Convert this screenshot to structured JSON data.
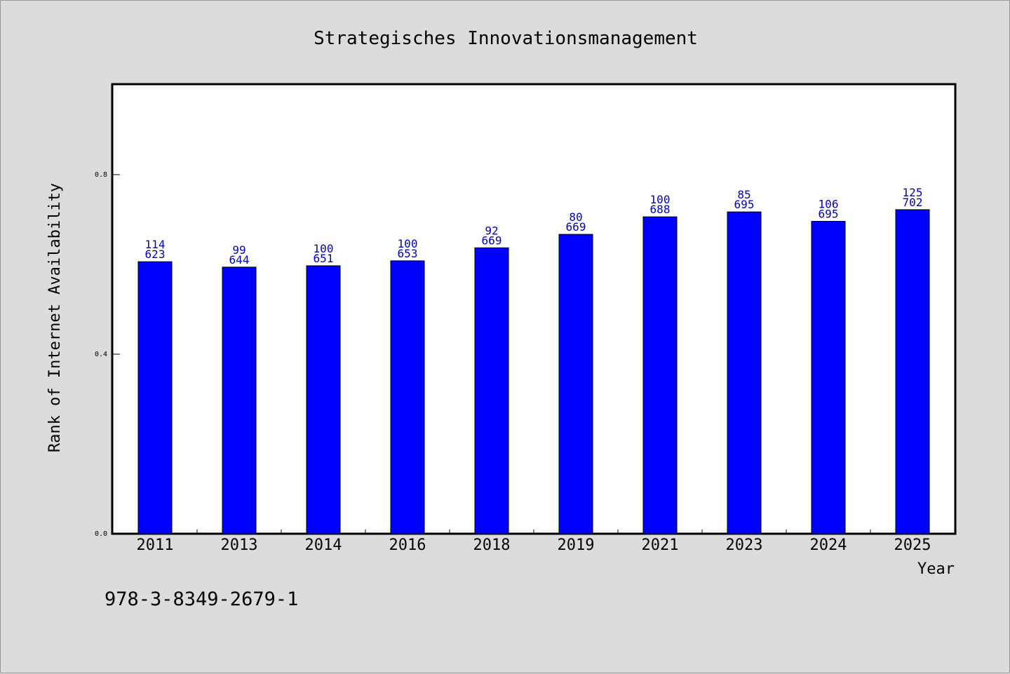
{
  "chart_data": {
    "type": "bar",
    "title": "Strategisches Innovationsmanagement",
    "xlabel": "Year",
    "ylabel": "Rank of Internet Availability",
    "categories": [
      "2011",
      "2013",
      "2014",
      "2016",
      "2018",
      "2019",
      "2021",
      "2023",
      "2024",
      "2025"
    ],
    "values": [
      0.606,
      0.594,
      0.597,
      0.608,
      0.637,
      0.667,
      0.706,
      0.717,
      0.696,
      0.722
    ],
    "labels_top": [
      "114",
      "99",
      "100",
      "100",
      "92",
      "80",
      "100",
      "85",
      "106",
      "125"
    ],
    "labels_bottom": [
      "623",
      "644",
      "651",
      "653",
      "669",
      "669",
      "688",
      "695",
      "695",
      "702"
    ],
    "ylim": [
      0,
      1.0
    ],
    "yticks": [
      "0.0",
      "0.4",
      "0.8"
    ],
    "ytick_values": [
      0,
      0.4,
      0.8
    ],
    "grid": false,
    "bar_color": "#0000ff",
    "label_color": "#0000cc",
    "background_color": "#dcdcdc",
    "plot_background": "#ffffff"
  },
  "footnote": "978-3-8349-2679-1"
}
